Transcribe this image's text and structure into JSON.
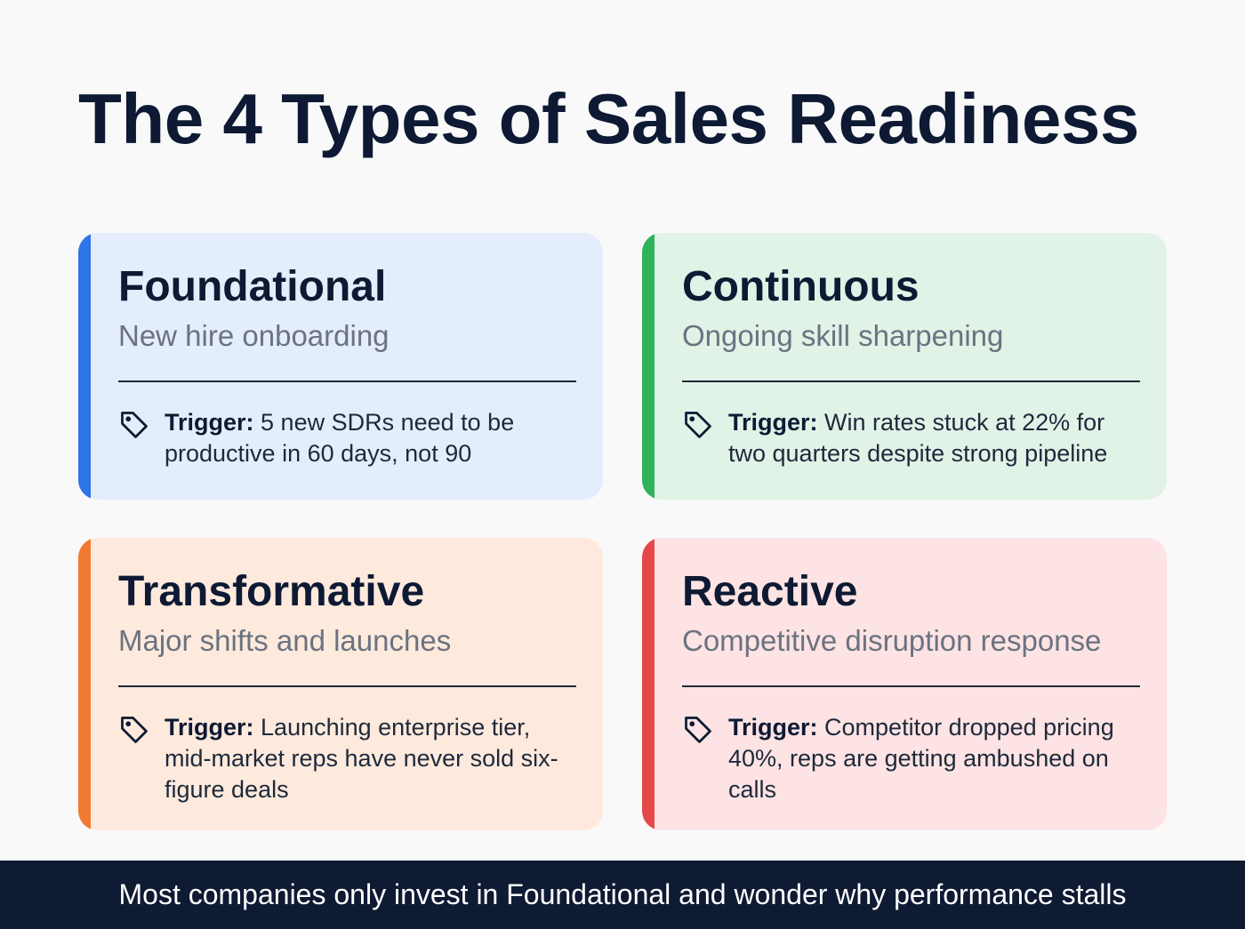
{
  "title": "The 4 Types of Sales Readiness",
  "trigger_label": "Trigger:",
  "cards": [
    {
      "title": "Foundational",
      "subtitle": "New hire onboarding",
      "trigger": "5 new SDRs need to be productive in 60 days, not 90",
      "accent": "#2f74e8",
      "background": "#e4edfb",
      "icon": "tag-icon"
    },
    {
      "title": "Continuous",
      "subtitle": "Ongoing skill sharpening",
      "trigger": "Win rates stuck at 22% for two quarters despite strong pipeline",
      "accent": "#2fb35a",
      "background": "#e1f2e7",
      "icon": "tag-icon"
    },
    {
      "title": "Transformative",
      "subtitle": "Major shifts and launches",
      "trigger": "Launching enterprise tier, mid-market reps have never sold six-figure deals",
      "accent": "#f07a30",
      "background": "#fdeadd",
      "icon": "tag-icon"
    },
    {
      "title": "Reactive",
      "subtitle": "Competitive disruption response",
      "trigger": "Competitor dropped pricing 40%, reps are getting ambushed on calls",
      "accent": "#e54848",
      "background": "#fde3e3",
      "icon": "tag-icon"
    }
  ],
  "footer": "Most companies only invest in Foundational and wonder why performance stalls"
}
